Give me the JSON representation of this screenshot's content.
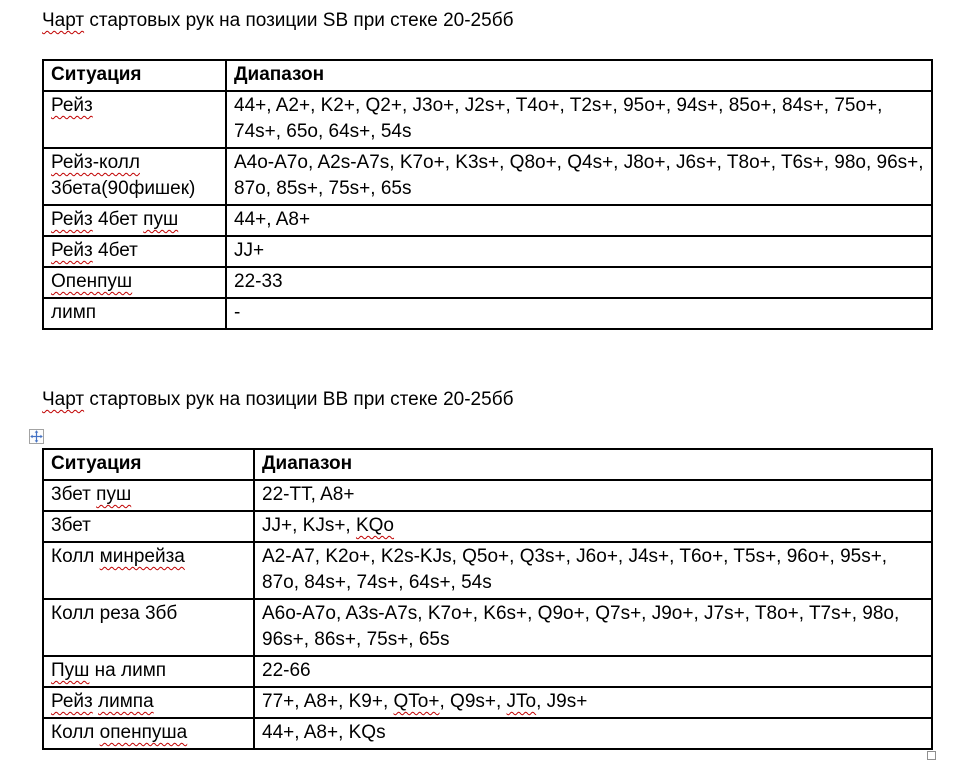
{
  "colors": {
    "text": "#000000",
    "table_border": "#000000",
    "spellcheck_underline": "#c00000",
    "move_handle_arrow": "#4472c4",
    "handle_border": "#8f8f8f",
    "background": "#ffffff"
  },
  "icons": {
    "table_move_handle": "four-way-arrow-in-square",
    "table_resize_handle": "small-empty-square"
  },
  "sections": [
    {
      "position": "SB",
      "title": [
        {
          "t": "Чарт",
          "sp": true
        },
        {
          "t": " стартовых рук на позиции SB при стеке 20-25бб"
        }
      ],
      "headers": [
        "Ситуация",
        "Диапазон"
      ],
      "rows": [
        {
          "situation": [
            {
              "t": "Рейз",
              "sp": true
            }
          ],
          "range": [
            {
              "t": "44+, A2+, K2+, Q2+, J3o+, J2s+, T4o+, T2s+, 95o+, 94s+, 85o+, 84s+, 75o+, 74s+, 65o, 64s+, 54s"
            }
          ]
        },
        {
          "situation": [
            {
              "t": "Рейз-колл",
              "sp": true
            },
            {
              "t": " 3бета(90фишек)"
            }
          ],
          "range": [
            {
              "t": "A4o-A7o, A2s-A7s, K7o+, K3s+, Q8o+, Q4s+, J8o+, J6s+, T8o+, T6s+, 98o, 96s+, 87o, 85s+, 75s+, 65s"
            }
          ]
        },
        {
          "situation": [
            {
              "t": "Рейз",
              "sp": true
            },
            {
              "t": " 4бет "
            },
            {
              "t": "пуш",
              "sp": true
            }
          ],
          "range": [
            {
              "t": "44+, A8+"
            }
          ]
        },
        {
          "situation": [
            {
              "t": "Рейз",
              "sp": true
            },
            {
              "t": " 4бет"
            }
          ],
          "range": [
            {
              "t": "JJ+"
            }
          ]
        },
        {
          "situation": [
            {
              "t": "Опенпуш",
              "sp": true
            }
          ],
          "range": [
            {
              "t": "22-33"
            }
          ]
        },
        {
          "situation": [
            {
              "t": "лимп"
            }
          ],
          "range": [
            {
              "t": "-"
            }
          ]
        }
      ]
    },
    {
      "position": "BB",
      "title": [
        {
          "t": "Чарт",
          "sp": true
        },
        {
          "t": " стартовых рук на позиции BB при стеке 20-25бб"
        }
      ],
      "headers": [
        "Ситуация",
        "Диапазон"
      ],
      "rows": [
        {
          "situation": [
            {
              "t": "3бет "
            },
            {
              "t": "пуш",
              "sp": true
            }
          ],
          "range": [
            {
              "t": "22-TT, A8+"
            }
          ]
        },
        {
          "situation": [
            {
              "t": "3бет"
            }
          ],
          "range": [
            {
              "t": "JJ+, KJs+, "
            },
            {
              "t": "KQo",
              "sp": true
            }
          ]
        },
        {
          "situation": [
            {
              "t": "Колл "
            },
            {
              "t": "минрейза",
              "sp": true
            }
          ],
          "range": [
            {
              "t": "A2-A7, K2o+, K2s-KJs, Q5o+, Q3s+, J6o+, J4s+, T6o+, T5s+, 96o+, 95s+, 87o, 84s+, 74s+, 64s+, 54s"
            }
          ]
        },
        {
          "situation": [
            {
              "t": "Колл реза 3бб"
            }
          ],
          "range": [
            {
              "t": "A6o-A7o, A3s-A7s, K7o+, K6s+, Q9o+, Q7s+, J9o+, J7s+, T8o+, T7s+, 98o, 96s+, 86s+, 75s+, 65s"
            }
          ]
        },
        {
          "situation": [
            {
              "t": "Пуш",
              "sp": true
            },
            {
              "t": " на лимп"
            }
          ],
          "range": [
            {
              "t": "22-66"
            }
          ]
        },
        {
          "situation": [
            {
              "t": "Рейз",
              "sp": true
            },
            {
              "t": " "
            },
            {
              "t": "лимпа",
              "sp": true
            }
          ],
          "range": [
            {
              "t": "77+, A8+, K9+, "
            },
            {
              "t": "QTo+",
              "sp": true
            },
            {
              "t": ", Q9s+, "
            },
            {
              "t": "JTo",
              "sp": true
            },
            {
              "t": ", J9s+"
            }
          ]
        },
        {
          "situation": [
            {
              "t": "Колл "
            },
            {
              "t": "опенпуша",
              "sp": true
            }
          ],
          "range": [
            {
              "t": "44+, A8+, KQs"
            }
          ]
        }
      ]
    }
  ]
}
